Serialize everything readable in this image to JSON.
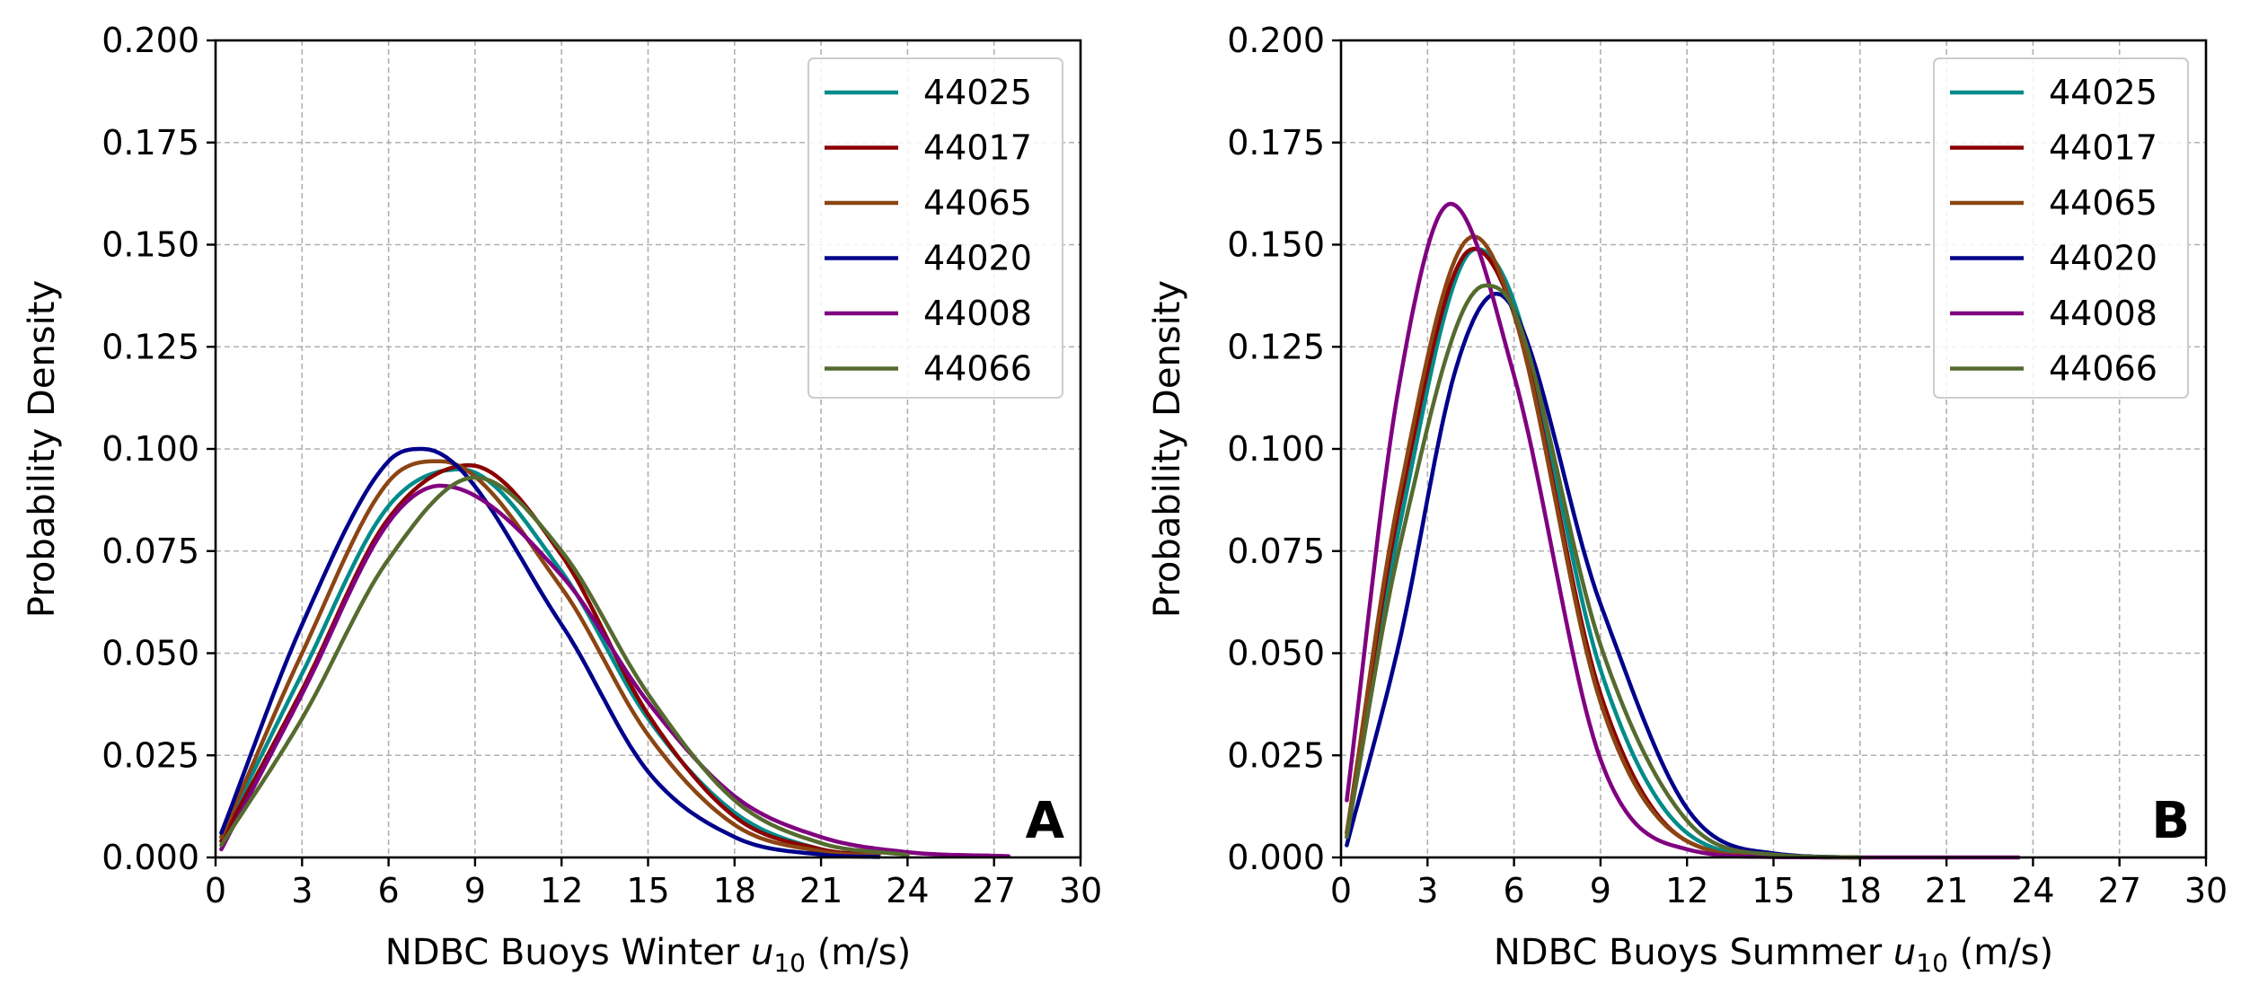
{
  "chart_data": [
    {
      "type": "line",
      "panel": "A",
      "xlabel_prefix": "NDBC Buoys Winter ",
      "xlabel_var": "u",
      "xlabel_sub": "10",
      "xlabel_suffix": " (m/s)",
      "ylabel": "Probability Density",
      "xlim": [
        0,
        30
      ],
      "ylim": [
        0,
        0.2
      ],
      "xticks": [
        0,
        3,
        6,
        9,
        12,
        15,
        18,
        21,
        24,
        27,
        30
      ],
      "yticks": [
        0.0,
        0.025,
        0.05,
        0.075,
        0.1,
        0.125,
        0.15,
        0.175,
        0.2
      ],
      "ytick_labels": [
        "0.000",
        "0.025",
        "0.050",
        "0.075",
        "0.100",
        "0.125",
        "0.150",
        "0.175",
        "0.200"
      ],
      "grid": true,
      "legend_position": "top-right",
      "series": [
        {
          "name": "44025",
          "color": "#008b8b",
          "x": [
            0.2,
            3,
            6,
            8.5,
            12,
            15,
            18,
            21,
            23
          ],
          "y": [
            0.005,
            0.045,
            0.086,
            0.095,
            0.07,
            0.034,
            0.011,
            0.002,
            0.0005
          ]
        },
        {
          "name": "44017",
          "color": "#8b0000",
          "x": [
            0.2,
            3,
            6,
            8.8,
            12,
            15,
            18,
            21,
            23
          ],
          "y": [
            0.004,
            0.041,
            0.083,
            0.096,
            0.074,
            0.035,
            0.01,
            0.002,
            0.0005
          ]
        },
        {
          "name": "44065",
          "color": "#8b4513",
          "x": [
            0.2,
            3,
            6,
            7.8,
            12,
            15,
            18,
            21,
            23
          ],
          "y": [
            0.005,
            0.05,
            0.092,
            0.097,
            0.066,
            0.03,
            0.008,
            0.0015,
            0.0004
          ]
        },
        {
          "name": "44020",
          "color": "#00008b",
          "x": [
            0.2,
            3,
            6,
            7.2,
            12,
            15,
            18,
            21,
            23
          ],
          "y": [
            0.006,
            0.057,
            0.097,
            0.1,
            0.057,
            0.021,
            0.005,
            0.0007,
            0.0001
          ]
        },
        {
          "name": "44008",
          "color": "#800080",
          "x": [
            0.2,
            3,
            6,
            7.8,
            12,
            15,
            18,
            21,
            24,
            27.5
          ],
          "y": [
            0.002,
            0.04,
            0.082,
            0.091,
            0.069,
            0.038,
            0.015,
            0.005,
            0.0013,
            0.0003
          ]
        },
        {
          "name": "44066",
          "color": "#556b2f",
          "x": [
            0.2,
            3,
            6,
            9,
            12,
            15,
            18,
            21,
            24
          ],
          "y": [
            0.003,
            0.034,
            0.073,
            0.093,
            0.075,
            0.04,
            0.014,
            0.0035,
            0.0006
          ]
        }
      ]
    },
    {
      "type": "line",
      "panel": "B",
      "xlabel_prefix": "NDBC Buoys Summer ",
      "xlabel_var": "u",
      "xlabel_sub": "10",
      "xlabel_suffix": " (m/s)",
      "ylabel": "Probability Density",
      "xlim": [
        0,
        30
      ],
      "ylim": [
        0,
        0.2
      ],
      "xticks": [
        0,
        3,
        6,
        9,
        12,
        15,
        18,
        21,
        24,
        27,
        30
      ],
      "yticks": [
        0.0,
        0.025,
        0.05,
        0.075,
        0.1,
        0.125,
        0.15,
        0.175,
        0.2
      ],
      "ytick_labels": [
        "0.000",
        "0.025",
        "0.050",
        "0.075",
        "0.100",
        "0.125",
        "0.150",
        "0.175",
        "0.200"
      ],
      "grid": true,
      "legend_position": "top-right",
      "series": [
        {
          "name": "44025",
          "color": "#008b8b",
          "x": [
            0.2,
            2,
            4.7,
            6,
            9,
            12,
            15,
            18
          ],
          "y": [
            0.005,
            0.08,
            0.149,
            0.136,
            0.046,
            0.006,
            0.0004,
            0.0
          ]
        },
        {
          "name": "44017",
          "color": "#8b0000",
          "x": [
            0.2,
            2,
            4.6,
            6,
            9,
            12,
            15,
            18
          ],
          "y": [
            0.006,
            0.085,
            0.149,
            0.133,
            0.04,
            0.004,
            0.0002,
            0.0
          ]
        },
        {
          "name": "44065",
          "color": "#8b4513",
          "x": [
            0.2,
            2,
            4.6,
            6,
            9,
            12,
            15,
            18
          ],
          "y": [
            0.006,
            0.088,
            0.152,
            0.133,
            0.038,
            0.004,
            0.0002,
            0.0
          ]
        },
        {
          "name": "44020",
          "color": "#00008b",
          "x": [
            0.2,
            2,
            4,
            5.4,
            9,
            12,
            15,
            18
          ],
          "y": [
            0.003,
            0.052,
            0.12,
            0.138,
            0.062,
            0.012,
            0.001,
            0.0
          ]
        },
        {
          "name": "44008",
          "color": "#800080",
          "x": [
            0.2,
            2,
            3.8,
            6,
            9,
            12,
            15,
            18,
            21,
            23.5
          ],
          "y": [
            0.014,
            0.115,
            0.16,
            0.118,
            0.024,
            0.002,
            0.0001,
            0.0,
            0.0,
            0.0
          ]
        },
        {
          "name": "44066",
          "color": "#556b2f",
          "x": [
            0.2,
            2,
            5,
            6,
            9,
            12,
            15,
            18
          ],
          "y": [
            0.005,
            0.075,
            0.14,
            0.134,
            0.052,
            0.009,
            0.0007,
            0.0
          ]
        }
      ]
    }
  ]
}
